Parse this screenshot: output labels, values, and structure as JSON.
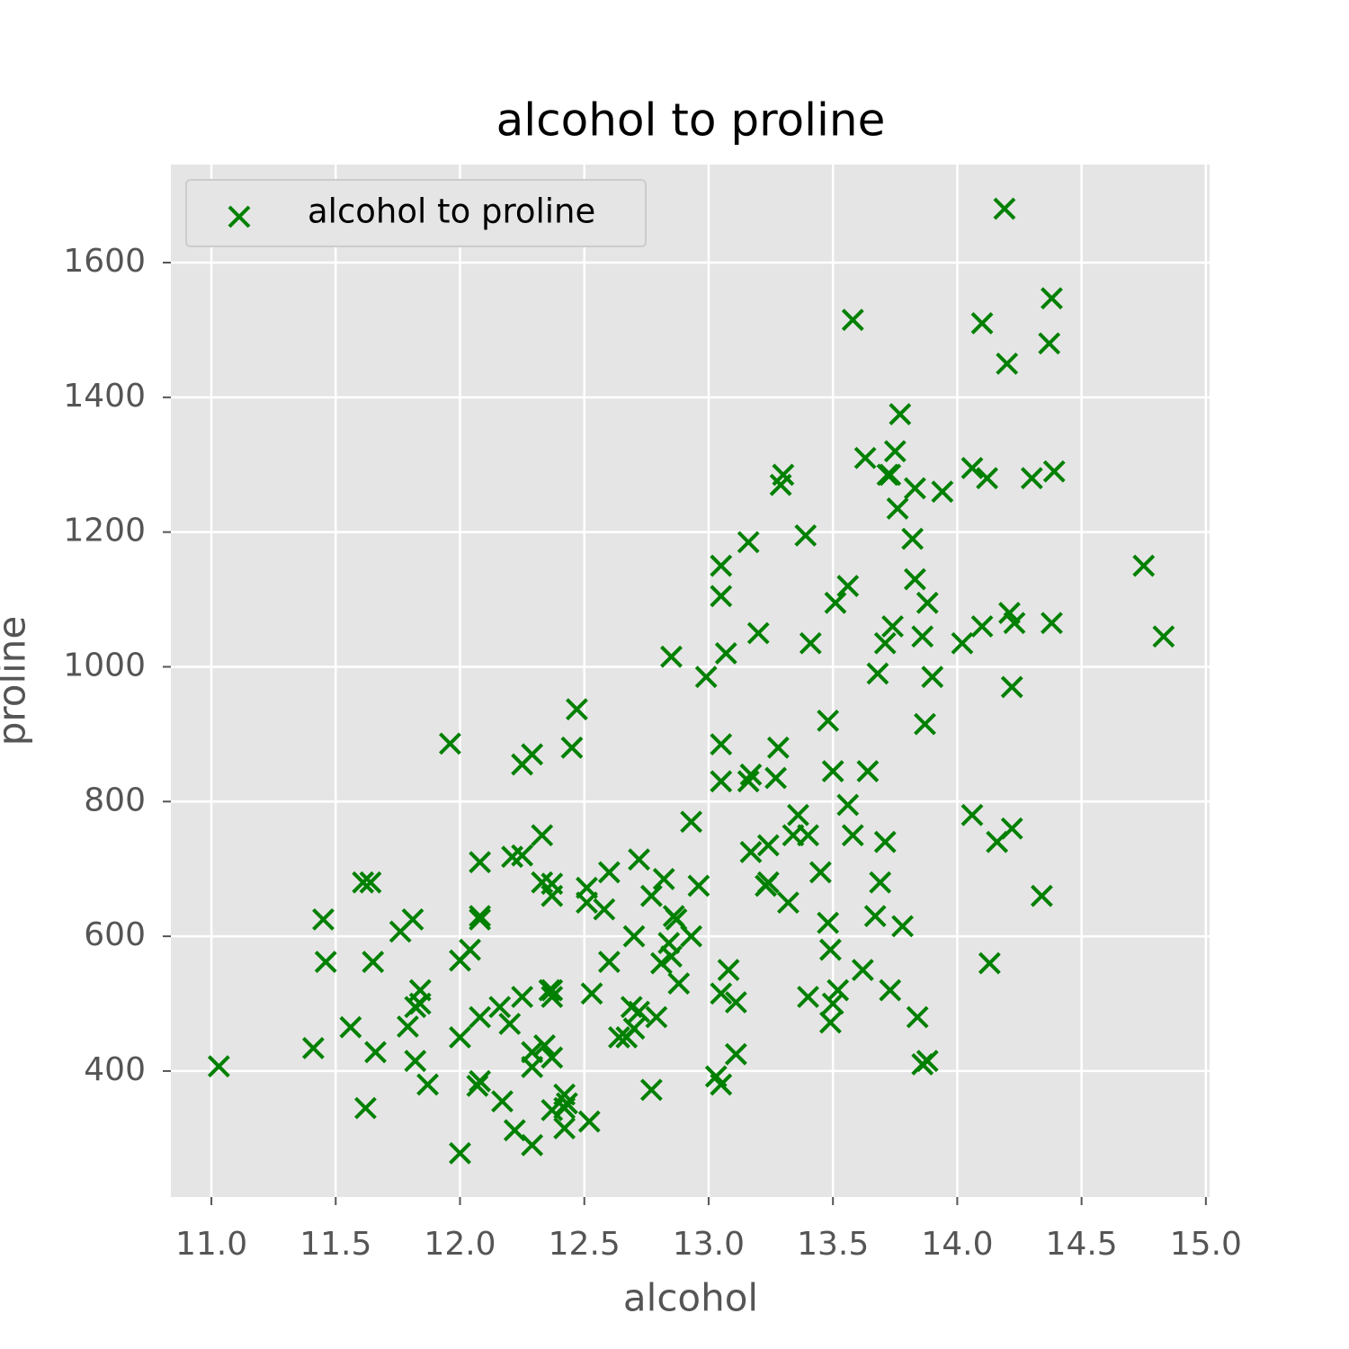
{
  "chart_data": {
    "type": "scatter",
    "title": "alcohol to proline",
    "x_label": "alcohol",
    "y_label": "proline",
    "x": [
      14.23,
      13.2,
      13.16,
      14.37,
      13.24,
      14.2,
      14.39,
      14.06,
      14.83,
      13.86,
      14.1,
      14.12,
      13.75,
      14.75,
      14.38,
      13.63,
      14.3,
      13.83,
      14.19,
      13.64,
      14.06,
      12.93,
      13.71,
      12.85,
      13.5,
      13.05,
      13.39,
      13.3,
      13.87,
      14.02,
      13.73,
      13.58,
      13.68,
      13.76,
      13.51,
      13.48,
      13.28,
      13.05,
      13.07,
      14.22,
      13.56,
      13.41,
      13.88,
      13.24,
      13.05,
      14.21,
      14.38,
      13.9,
      14.1,
      13.94,
      13.05,
      13.83,
      13.82,
      13.77,
      13.74,
      13.56,
      14.22,
      13.29,
      13.72,
      12.37,
      12.33,
      12.64,
      13.67,
      12.37,
      12.17,
      12.37,
      13.11,
      12.37,
      13.34,
      12.21,
      12.29,
      13.86,
      13.49,
      12.99,
      11.96,
      11.66,
      13.03,
      11.84,
      12.33,
      12.7,
      12.0,
      12.72,
      12.08,
      13.05,
      11.84,
      12.67,
      12.16,
      11.65,
      11.64,
      12.08,
      12.08,
      12.0,
      12.69,
      12.29,
      11.62,
      12.47,
      11.81,
      12.29,
      12.37,
      12.29,
      12.08,
      12.6,
      12.34,
      11.82,
      12.51,
      12.42,
      12.25,
      12.72,
      12.22,
      11.61,
      11.46,
      12.52,
      11.76,
      11.41,
      12.08,
      11.03,
      11.82,
      12.42,
      12.77,
      12.0,
      11.45,
      11.56,
      12.42,
      13.05,
      11.87,
      12.07,
      12.43,
      11.79,
      12.37,
      12.04,
      12.86,
      12.88,
      12.81,
      12.7,
      12.51,
      12.6,
      12.25,
      12.53,
      13.49,
      12.84,
      12.93,
      13.36,
      13.52,
      13.62,
      12.25,
      13.16,
      13.88,
      12.87,
      13.32,
      13.08,
      13.5,
      12.79,
      13.11,
      13.23,
      12.58,
      13.17,
      13.84,
      12.45,
      14.34,
      13.48,
      12.36,
      13.69,
      12.85,
      12.96,
      13.78,
      13.73,
      13.45,
      12.82,
      13.58,
      13.4,
      12.2,
      12.77,
      14.16,
      13.71,
      13.4,
      13.27,
      13.17,
      14.13
    ],
    "series": [
      {
        "name": "alcohol to proline",
        "color": "#008000",
        "values": [
          1065,
          1050,
          1185,
          1480,
          735,
          1450,
          1290,
          1295,
          1045,
          1045,
          1510,
          1280,
          1320,
          1150,
          1547,
          1310,
          1280,
          1130,
          1680,
          845,
          780,
          770,
          1035,
          1015,
          845,
          830,
          1195,
          1285,
          915,
          1035,
          1285,
          1515,
          990,
          1235,
          1095,
          920,
          880,
          1105,
          1020,
          760,
          795,
          1035,
          1095,
          680,
          885,
          1080,
          1065,
          985,
          1060,
          1260,
          1150,
          1265,
          1190,
          1375,
          1060,
          1120,
          970,
          1270,
          1285,
          520,
          680,
          450,
          630,
          420,
          355,
          678,
          502,
          510,
          750,
          718,
          870,
          410,
          472,
          985,
          886,
          428,
          392,
          500,
          750,
          463,
          278,
          714,
          630,
          515,
          520,
          450,
          495,
          562,
          680,
          625,
          480,
          450,
          495,
          290,
          345,
          937,
          625,
          428,
          660,
          406,
          710,
          562,
          438,
          415,
          672,
          315,
          510,
          488,
          312,
          680,
          562,
          325,
          607,
          434,
          385,
          407,
          495,
          345,
          372,
          564,
          625,
          465,
          365,
          380,
          380,
          378,
          352,
          466,
          342,
          580,
          630,
          530,
          560,
          600,
          650,
          695,
          720,
          515,
          580,
          590,
          600,
          780,
          520,
          550,
          855,
          830,
          415,
          625,
          650,
          550,
          500,
          480,
          425,
          675,
          640,
          725,
          480,
          880,
          660,
          620,
          520,
          680,
          570,
          675,
          615,
          520,
          695,
          685,
          750,
          510,
          470,
          660,
          740,
          740,
          750,
          835,
          840,
          560
        ]
      }
    ],
    "xlim": [
      10.837,
      15.015
    ],
    "ylim": [
      213,
      1745.5
    ],
    "xticks": [
      {
        "value": 11,
        "label": "11.0"
      },
      11.5,
      {
        "value": 12,
        "label": "12.0"
      },
      12.5,
      {
        "value": 13,
        "label": "13.0"
      },
      13.5,
      {
        "value": 14,
        "label": "14.0"
      },
      14.5,
      {
        "value": 15,
        "label": "15.0"
      }
    ],
    "yticks": [
      400,
      600,
      800,
      1000,
      1200,
      1400,
      1600
    ],
    "grid": true,
    "legend": "upper left"
  }
}
